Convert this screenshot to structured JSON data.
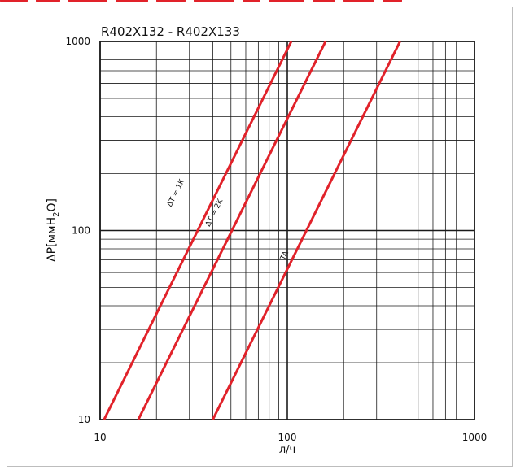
{
  "chart_data": {
    "type": "line",
    "title": "R402X132 - R402X133",
    "xlabel": "л/ч",
    "ylabel": "ΔP[ммH₂O]",
    "xscale": "log",
    "yscale": "log",
    "xlim": [
      10,
      1000
    ],
    "ylim": [
      10,
      1000
    ],
    "xticks": [
      "10",
      "100",
      "1000"
    ],
    "yticks": [
      "10",
      "100",
      "1000"
    ],
    "grid": true,
    "series": [
      {
        "name": "ΔT = 1K",
        "x": [
          10.5,
          105
        ],
        "y": [
          10,
          1000
        ],
        "color": "#e1222a"
      },
      {
        "name": "ΔT = 2K",
        "x": [
          16,
          160
        ],
        "y": [
          10,
          1000
        ],
        "color": "#e1222a"
      },
      {
        "name": "TA",
        "x": [
          40,
          400
        ],
        "y": [
          10,
          1000
        ],
        "color": "#e1222a"
      }
    ]
  },
  "colors": {
    "accent": "#e1222a",
    "grid": "#1a1a1a",
    "frame": "#bdbdbd"
  }
}
